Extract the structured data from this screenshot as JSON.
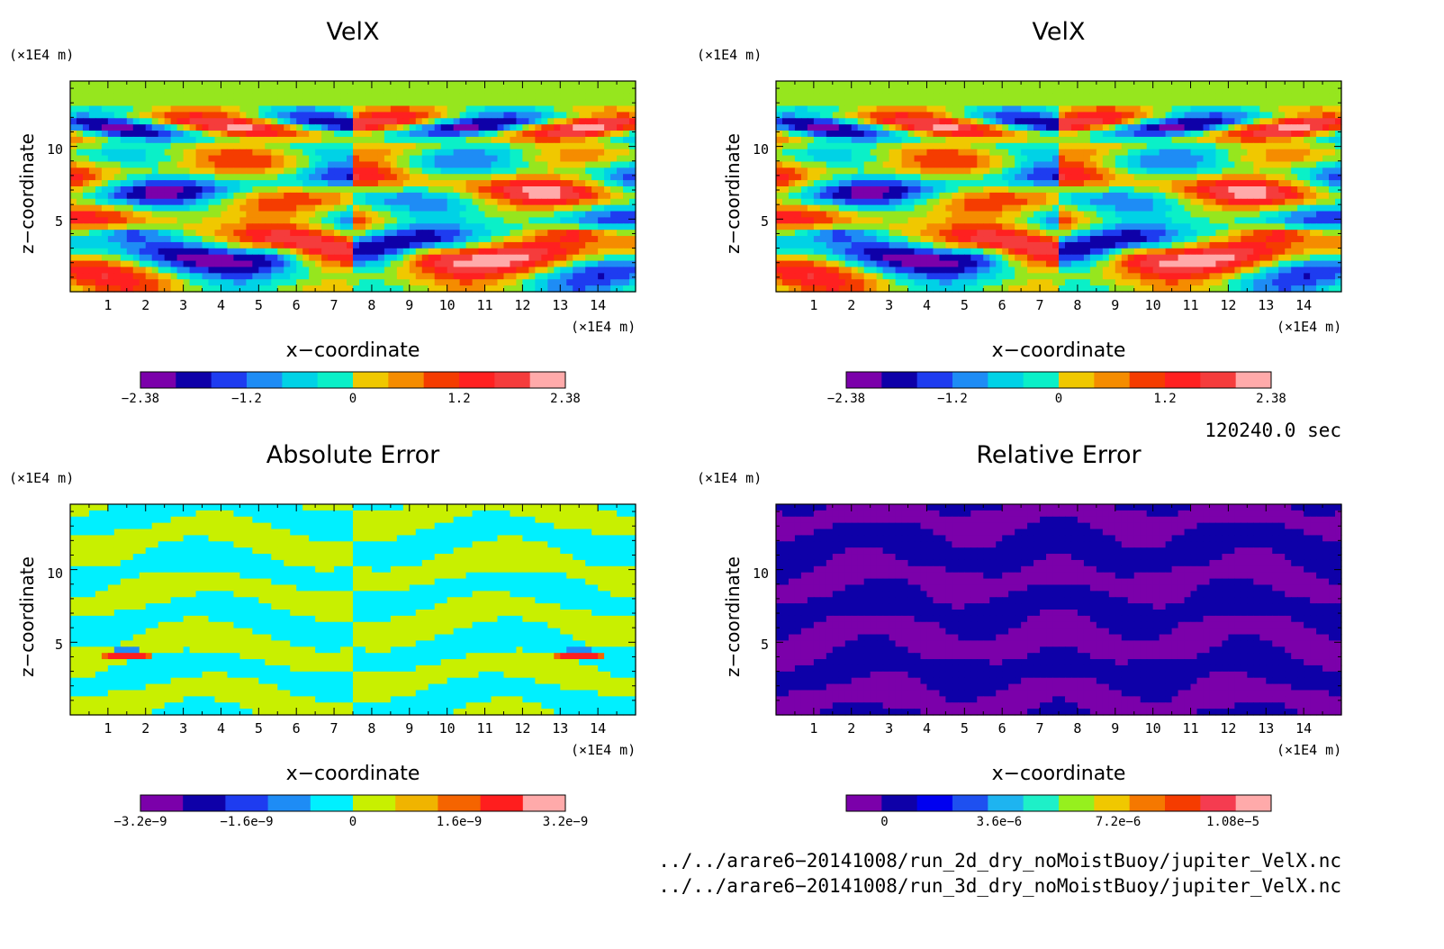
{
  "colors": {
    "velx": [
      "#7b00aa",
      "#0e00a8",
      "#1e3cf0",
      "#1e8cf5",
      "#00d2e6",
      "#0af0c8",
      "#96e61e",
      "#f0c800",
      "#f58c00",
      "#f53c00",
      "#ff2020",
      "#f53c3c",
      "#ffaaaa"
    ],
    "abserr": [
      "#7b00aa",
      "#0e00a8",
      "#1e3cf0",
      "#1e8cf5",
      "#00f0ff",
      "#c8f000",
      "#f0b400",
      "#f56400",
      "#ff1e1e",
      "#ffaaaa"
    ],
    "relerr": [
      "#7b00aa",
      "#0e00a8",
      "#0000f0",
      "#1e50f0",
      "#1eb4f0",
      "#1ef0c8",
      "#96f01e",
      "#f0c800",
      "#f57800",
      "#f53c00",
      "#f53c50",
      "#ffaaaa"
    ]
  },
  "shared": {
    "x_ticks": [
      "1",
      "2",
      "3",
      "4",
      "5",
      "6",
      "7",
      "8",
      "9",
      "10",
      "11",
      "12",
      "13",
      "14"
    ],
    "y_ticks": [
      "10",
      "5"
    ],
    "unit": "(×1E4 m)",
    "xlabel": "x−coordinate",
    "ylabel": "z−coordinate"
  },
  "panels": {
    "p1": {
      "title": "VelX",
      "cb_ticks": [
        "−2.38",
        "−1.2",
        "0",
        "1.2",
        "2.38"
      ]
    },
    "p2": {
      "title": "VelX",
      "cb_ticks": [
        "−2.38",
        "−1.2",
        "0",
        "1.2",
        "2.38"
      ]
    },
    "p3": {
      "title": "Absolute Error",
      "cb_ticks": [
        "−3.2e−9",
        "−1.6e−9",
        "0",
        "1.6e−9",
        "3.2e−9"
      ]
    },
    "p4": {
      "title": "Relative Error",
      "cb_ticks": [
        "0",
        "3.6e−6",
        "7.2e−6",
        "1.08e−5"
      ]
    }
  },
  "time_label": "120240.0 sec",
  "files": [
    "../../arare6−20141008/run_2d_dry_noMoistBuoy/jupiter_VelX.nc",
    "../../arare6−20141008/run_3d_dry_noMoistBuoy/jupiter_VelX.nc"
  ],
  "chart_data": [
    {
      "type": "heatmap",
      "title": "VelX",
      "xlabel": "x−coordinate",
      "ylabel": "z−coordinate",
      "xlim": [
        0,
        15
      ],
      "ylim": [
        0,
        14.5
      ],
      "colorbar": {
        "min": -2.38,
        "max": 2.38,
        "ticks": [
          -2.38,
          -1.2,
          0,
          1.2,
          2.38
        ]
      }
    },
    {
      "type": "heatmap",
      "title": "VelX",
      "xlabel": "x−coordinate",
      "ylabel": "z−coordinate",
      "xlim": [
        0,
        15
      ],
      "ylim": [
        0,
        14.5
      ],
      "colorbar": {
        "min": -2.38,
        "max": 2.38,
        "ticks": [
          -2.38,
          -1.2,
          0,
          1.2,
          2.38
        ]
      }
    },
    {
      "type": "heatmap",
      "title": "Absolute Error",
      "xlabel": "x−coordinate",
      "ylabel": "z−coordinate",
      "xlim": [
        0,
        15
      ],
      "ylim": [
        0,
        14.5
      ],
      "colorbar": {
        "min": -3.2e-09,
        "max": 3.2e-09,
        "ticks": [
          -3.2e-09,
          -1.6e-09,
          0,
          1.6e-09,
          3.2e-09
        ]
      }
    },
    {
      "type": "heatmap",
      "title": "Relative Error",
      "xlabel": "x−coordinate",
      "ylabel": "z−coordinate",
      "xlim": [
        0,
        15
      ],
      "ylim": [
        0,
        14.5
      ],
      "colorbar": {
        "min": 0,
        "max": 1.08e-05,
        "ticks": [
          0,
          3.6e-06,
          7.2e-06,
          1.08e-05
        ]
      }
    }
  ]
}
